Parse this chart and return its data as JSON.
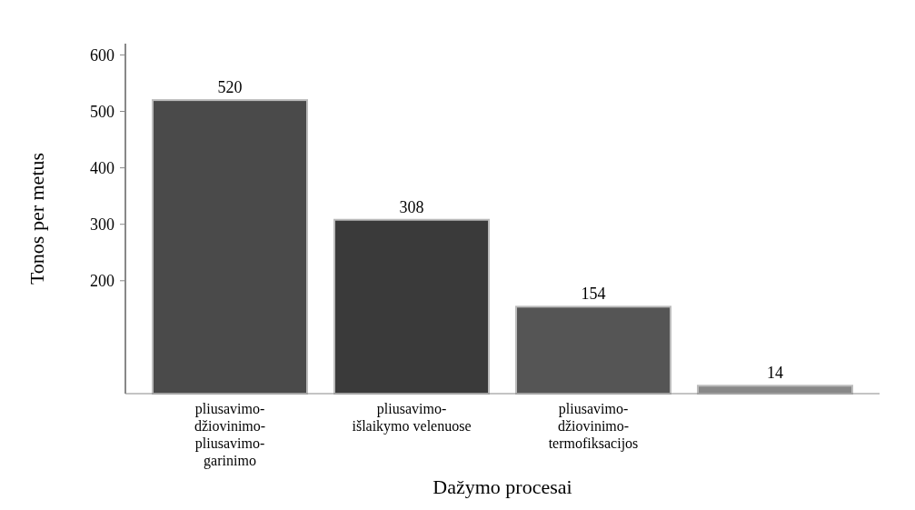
{
  "chart_data": {
    "type": "bar",
    "xlabel": "Dažymo procesai",
    "ylabel": "Tonos per metus",
    "categories": [
      "pliusavimo-džiovinimo-pliusavimo-garinimo",
      "pliusavimo-išlaikymo velenuose",
      "pliusavimo-džiovinimo-termofiksacijos",
      null
    ],
    "values": [
      520,
      308,
      154,
      14
    ],
    "colors": [
      "#4a4a4a",
      "#3a3a3a",
      "#555555",
      "#888888"
    ],
    "ylim": [
      0,
      620
    ],
    "yticks": [
      200,
      300,
      400,
      500,
      600
    ],
    "data_labels": true
  }
}
